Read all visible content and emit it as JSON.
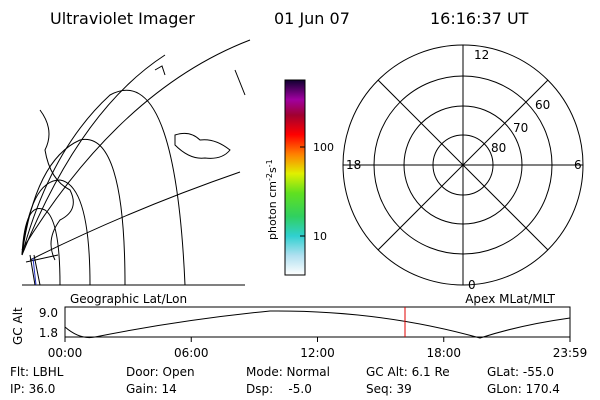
{
  "header": {
    "title": "Ultraviolet Imager",
    "date": "01 Jun 07",
    "time": "16:16:37 UT"
  },
  "colorbar": {
    "label_parts": [
      "photon cm",
      "-2",
      "s",
      "-1"
    ],
    "ticks": [
      "100",
      "10"
    ]
  },
  "polar": {
    "mlt_labels": [
      "12",
      "18",
      "6",
      "0"
    ],
    "lat_labels": [
      "60",
      "70",
      "80"
    ]
  },
  "altitude_plot": {
    "left_label": "Geographic Lat/Lon",
    "right_label": "Apex MLat/MLT",
    "axis_label": "GC Alt",
    "ticks": [
      "9.0",
      "1.8"
    ],
    "time_ticks": [
      "00:00",
      "06:00",
      "12:00",
      "18:00",
      "23:59"
    ]
  },
  "footer": [
    [
      "Flt: LBHL",
      "IP: 36.0"
    ],
    [
      "Door: Open",
      "Gain: 14"
    ],
    [
      "Mode: Normal",
      "Dsp:    -5.0"
    ],
    [
      "GC Alt: 6.1 Re",
      "Seq: 39"
    ],
    [
      "GLat: -55.0",
      "GLon: 170.4"
    ]
  ]
}
